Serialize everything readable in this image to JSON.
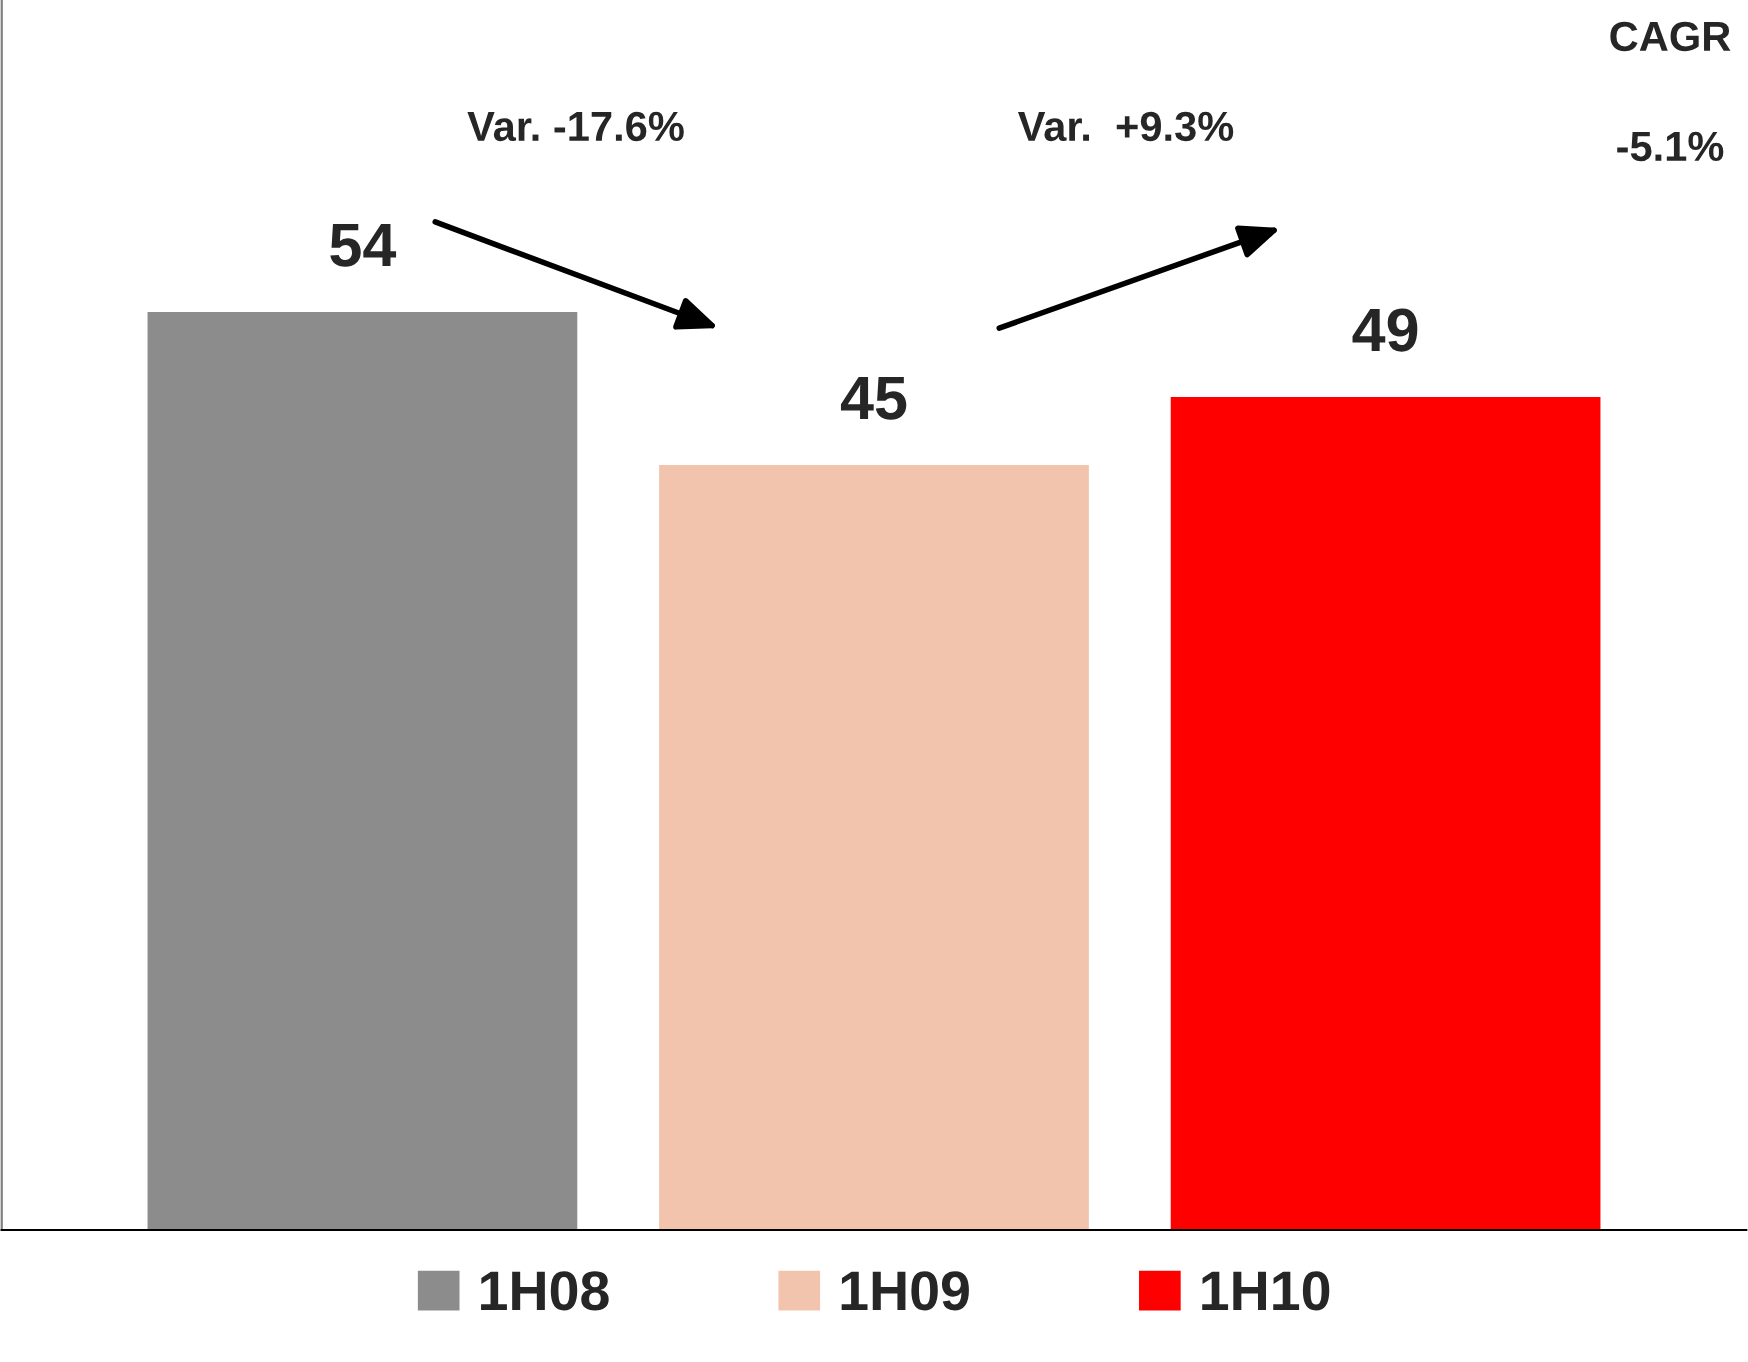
{
  "chart_data": {
    "type": "bar",
    "categories": [
      null
    ],
    "series": [
      {
        "name": "1H08",
        "color": "#8c8c8c",
        "values": [
          54
        ]
      },
      {
        "name": "1H09",
        "color": "#f2c4ae",
        "values": [
          45
        ]
      },
      {
        "name": "1H10",
        "color": "#ff0000",
        "values": [
          49
        ]
      }
    ],
    "data_labels": true,
    "legend": "bottom",
    "annotations": [
      "Var. -17.6%",
      "Var.  +9.3%",
      "CAGR",
      "-5.1%"
    ]
  }
}
